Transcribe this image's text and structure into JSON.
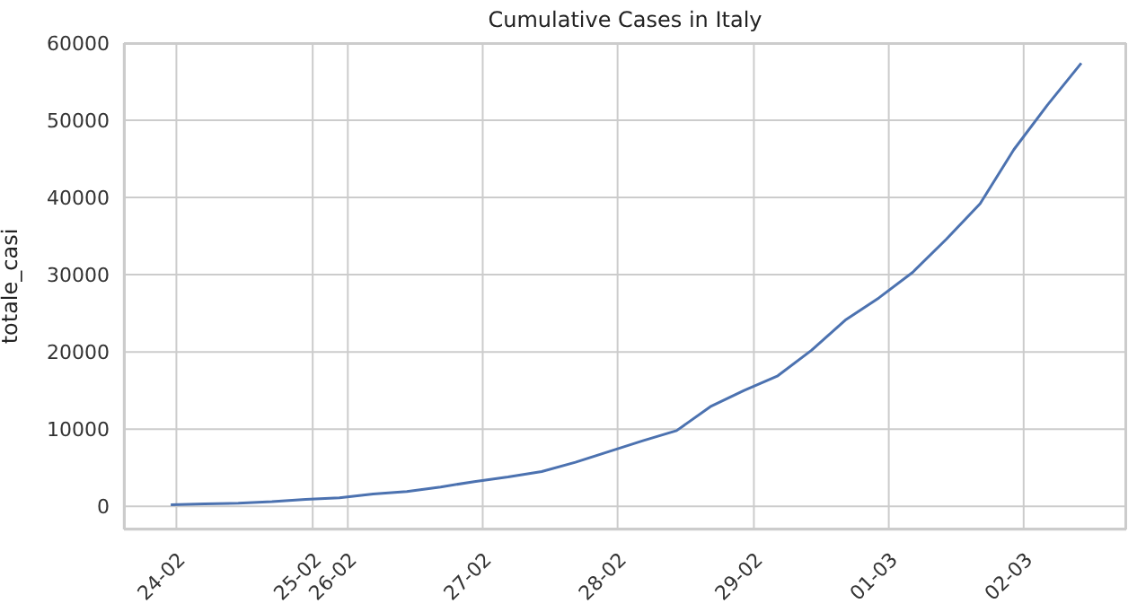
{
  "chart_data": {
    "type": "line",
    "title": "Cumulative Cases in Italy",
    "ylabel": "totale_casi",
    "x": [
      "--02-23T23:00",
      "--02-24T05:00",
      "--02-24T11:00",
      "--02-24T17:00",
      "--02-24T23:00",
      "--02-25T05:00",
      "--02-25T11:00",
      "--02-25T17:00",
      "--02-25T23:00",
      "--02-26T05:00",
      "--02-26T11:00",
      "--02-26T17:00",
      "--02-26T23:00",
      "--02-27T05:00",
      "--02-27T11:00",
      "--02-27T17:00",
      "--02-27T23:00",
      "--02-28T05:00",
      "--02-28T11:00",
      "--02-28T17:00",
      "--02-28T23:00",
      "--02-29T05:00",
      "--02-29T11:00",
      "--02-29T17:00",
      "--02-29T23:00",
      "--03-01T05:00",
      "--03-01T11:00",
      "--03-01T17:00"
    ],
    "series": [
      {
        "color": "#4c72b0",
        "values": [
          200,
          300,
          400,
          600,
          900,
          1100,
          1600,
          1900,
          2500,
          3200,
          3800,
          4500,
          5700,
          7100,
          8500,
          9800,
          12900,
          15000,
          16900,
          20200,
          24100,
          27000,
          30300,
          34600,
          39200,
          46200,
          52000,
          57400
        ]
      }
    ],
    "xlim": [
      "--02-23T14:40",
      "--03-02T01:00"
    ],
    "xticks": [
      {
        "value": "--02-24T00:00",
        "label": "24-02"
      },
      {
        "value": "--02-25T00:15",
        "label": "25-02"
      },
      {
        "value": "--02-25T06:30",
        "label": "26-02"
      },
      {
        "value": "--02-26T06:30",
        "label": "27-02"
      },
      {
        "value": "--02-27T06:30",
        "label": "28-02"
      },
      {
        "value": "--02-28T06:45",
        "label": "29-02"
      },
      {
        "value": "--02-29T06:45",
        "label": "01-03"
      },
      {
        "value": "--03-01T06:45",
        "label": "02-03"
      }
    ],
    "ylim": [
      -3000,
      60000
    ],
    "yticks": [
      0,
      10000,
      20000,
      30000,
      40000,
      50000,
      60000
    ],
    "grid": true,
    "legend": false,
    "marker": "none",
    "line_style": "solid"
  }
}
